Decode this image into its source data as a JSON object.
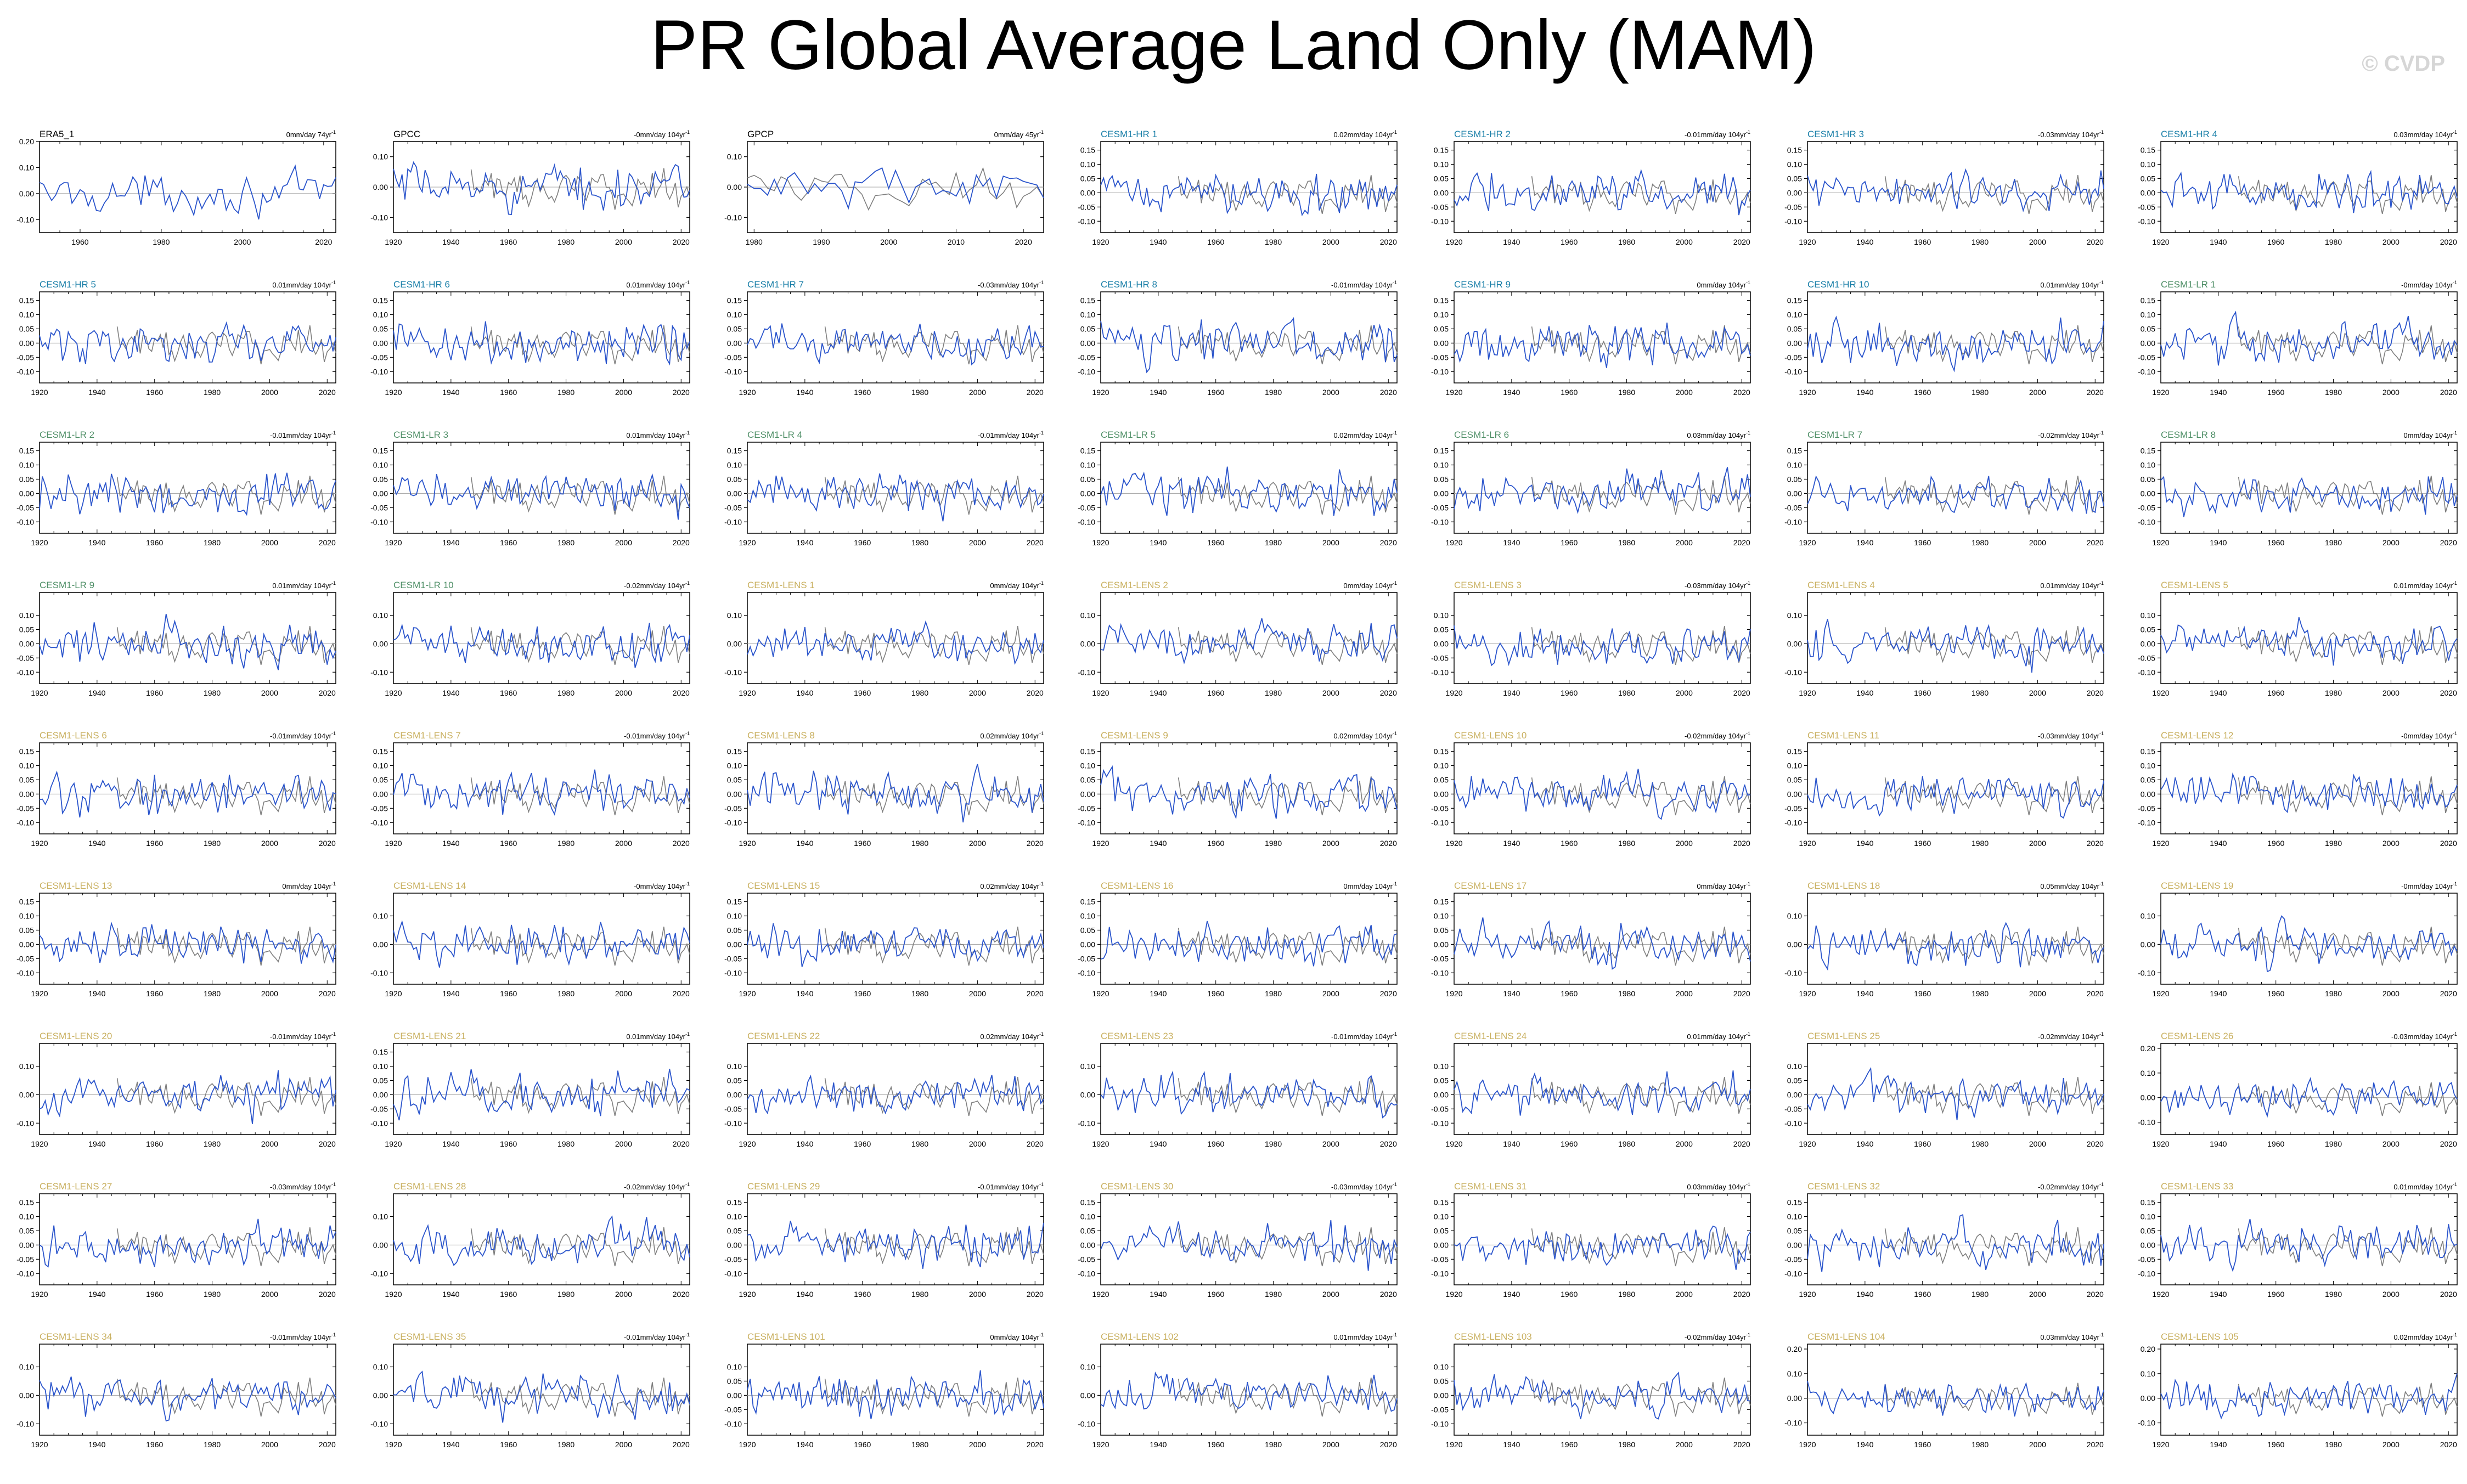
{
  "title": "PR Global Average Land Only (MAM)",
  "watermark": "© CVDP",
  "colors": {
    "model_line": "#2b55cc",
    "obs_line": "#7f7f7f",
    "zero_line": "#a0a0a0",
    "obs_title": "#000000",
    "hr_title": "#1a7fa8",
    "lr_title": "#4f8f67",
    "lens_title": "#c9b060"
  },
  "chart_data": [
    {
      "type": "line",
      "panel": "ERA5_1",
      "trend_label": "0mm/day 74yr",
      "group": "obs",
      "x_range": [
        1950,
        2023
      ],
      "ylim": [
        -0.15,
        0.2
      ],
      "yticks": [
        -0.1,
        0.0,
        0.1,
        0.2
      ],
      "xticks": [
        1960,
        1980,
        2000,
        2020
      ],
      "series": []
    },
    {
      "type": "line",
      "panel": "GPCC",
      "trend_label": "-0mm/day 104yr",
      "group": "obs",
      "x_range": [
        1920,
        2023
      ],
      "ylim": [
        -0.15,
        0.15
      ],
      "yticks": [
        -0.1,
        0.0,
        0.1
      ],
      "xticks": [
        1920,
        1940,
        1960,
        1980,
        2000,
        2020
      ],
      "series": []
    },
    {
      "type": "line",
      "panel": "GPCP",
      "trend_label": "0mm/day 45yr",
      "group": "obs",
      "x_range": [
        1979,
        2023
      ],
      "ylim": [
        -0.15,
        0.15
      ],
      "yticks": [
        -0.1,
        0.0,
        0.1
      ],
      "xticks": [
        1980,
        1990,
        2000,
        2010,
        2020
      ],
      "series": []
    },
    {
      "type": "line",
      "panel": "CESM1-HR 1",
      "trend_label": "0.02mm/day 104yr",
      "group": "hr",
      "yticks": [
        -0.1,
        -0.05,
        0.0,
        0.05,
        0.1,
        0.15
      ],
      "series": []
    },
    {
      "type": "line",
      "panel": "CESM1-HR 2",
      "trend_label": "-0.01mm/day 104yr",
      "group": "hr",
      "yticks": [
        -0.1,
        -0.05,
        0.0,
        0.05,
        0.1,
        0.15
      ],
      "series": []
    },
    {
      "type": "line",
      "panel": "CESM1-HR 3",
      "trend_label": "-0.03mm/day 104yr",
      "group": "hr",
      "yticks": [
        -0.1,
        -0.05,
        0.0,
        0.05,
        0.1,
        0.15
      ],
      "series": []
    },
    {
      "type": "line",
      "panel": "CESM1-HR 4",
      "trend_label": "0.03mm/day 104yr",
      "group": "hr",
      "yticks": [
        -0.1,
        -0.05,
        0.0,
        0.05,
        0.1,
        0.15
      ],
      "series": []
    },
    {
      "type": "line",
      "panel": "CESM1-HR 5",
      "trend_label": "0.01mm/day 104yr",
      "group": "hr",
      "yticks": [
        -0.1,
        -0.05,
        0.0,
        0.05,
        0.1,
        0.15
      ],
      "series": []
    },
    {
      "type": "line",
      "panel": "CESM1-HR 6",
      "trend_label": "0.01mm/day 104yr",
      "group": "hr",
      "yticks": [
        -0.1,
        -0.05,
        0.0,
        0.05,
        0.1,
        0.15
      ],
      "series": []
    },
    {
      "type": "line",
      "panel": "CESM1-HR 7",
      "trend_label": "-0.03mm/day 104yr",
      "group": "hr",
      "yticks": [
        -0.1,
        -0.05,
        0.0,
        0.05,
        0.1,
        0.15
      ],
      "series": []
    },
    {
      "type": "line",
      "panel": "CESM1-HR 8",
      "trend_label": "-0.01mm/day 104yr",
      "group": "hr",
      "yticks": [
        -0.1,
        -0.05,
        0.0,
        0.05,
        0.1,
        0.15
      ],
      "series": []
    },
    {
      "type": "line",
      "panel": "CESM1-HR 9",
      "trend_label": "0mm/day 104yr",
      "group": "hr",
      "yticks": [
        -0.1,
        -0.05,
        0.0,
        0.05,
        0.1,
        0.15
      ],
      "series": []
    },
    {
      "type": "line",
      "panel": "CESM1-HR 10",
      "trend_label": "0.01mm/day 104yr",
      "group": "hr",
      "yticks": [
        -0.1,
        -0.05,
        0.0,
        0.05,
        0.1,
        0.15
      ],
      "series": []
    },
    {
      "type": "line",
      "panel": "CESM1-LR 1",
      "trend_label": "-0mm/day 104yr",
      "group": "lr",
      "yticks": [
        -0.1,
        -0.05,
        0.0,
        0.05,
        0.1,
        0.15
      ],
      "series": []
    },
    {
      "type": "line",
      "panel": "CESM1-LR 2",
      "trend_label": "-0.01mm/day 104yr",
      "group": "lr",
      "yticks": [
        -0.1,
        -0.05,
        0.0,
        0.05,
        0.1,
        0.15
      ],
      "series": []
    },
    {
      "type": "line",
      "panel": "CESM1-LR 3",
      "trend_label": "0.01mm/day 104yr",
      "group": "lr",
      "yticks": [
        -0.1,
        -0.05,
        0.0,
        0.05,
        0.1,
        0.15
      ],
      "series": []
    },
    {
      "type": "line",
      "panel": "CESM1-LR 4",
      "trend_label": "-0.01mm/day 104yr",
      "group": "lr",
      "yticks": [
        -0.1,
        -0.05,
        0.0,
        0.05,
        0.1,
        0.15
      ],
      "series": []
    },
    {
      "type": "line",
      "panel": "CESM1-LR 5",
      "trend_label": "0.02mm/day 104yr",
      "group": "lr",
      "yticks": [
        -0.1,
        -0.05,
        0.0,
        0.05,
        0.1,
        0.15
      ],
      "series": []
    },
    {
      "type": "line",
      "panel": "CESM1-LR 6",
      "trend_label": "0.03mm/day 104yr",
      "group": "lr",
      "yticks": [
        -0.1,
        -0.05,
        0.0,
        0.05,
        0.1,
        0.15
      ],
      "series": []
    },
    {
      "type": "line",
      "panel": "CESM1-LR 7",
      "trend_label": "-0.02mm/day 104yr",
      "group": "lr",
      "yticks": [
        -0.1,
        -0.05,
        0.0,
        0.05,
        0.1,
        0.15
      ],
      "series": []
    },
    {
      "type": "line",
      "panel": "CESM1-LR 8",
      "trend_label": "0mm/day 104yr",
      "group": "lr",
      "yticks": [
        -0.1,
        -0.05,
        0.0,
        0.05,
        0.1,
        0.15
      ],
      "series": []
    },
    {
      "type": "line",
      "panel": "CESM1-LR 9",
      "trend_label": "0.01mm/day 104yr",
      "group": "lr",
      "yticks": [
        -0.1,
        -0.05,
        0.0,
        0.05,
        0.1
      ],
      "series": []
    },
    {
      "type": "line",
      "panel": "CESM1-LR 10",
      "trend_label": "-0.02mm/day 104yr",
      "group": "lr",
      "yticks": [
        -0.1,
        0.0,
        0.1
      ],
      "series": []
    },
    {
      "type": "line",
      "panel": "CESM1-LENS 1",
      "trend_label": "0mm/day 104yr",
      "group": "lens",
      "yticks": [
        -0.1,
        0.0,
        0.1
      ],
      "series": []
    },
    {
      "type": "line",
      "panel": "CESM1-LENS 2",
      "trend_label": "0mm/day 104yr",
      "group": "lens",
      "yticks": [
        -0.1,
        0.0,
        0.1
      ],
      "series": []
    },
    {
      "type": "line",
      "panel": "CESM1-LENS 3",
      "trend_label": "-0.03mm/day 104yr",
      "group": "lens",
      "yticks": [
        -0.1,
        -0.05,
        0.0,
        0.05,
        0.1
      ],
      "series": []
    },
    {
      "type": "line",
      "panel": "CESM1-LENS 4",
      "trend_label": "0.01mm/day 104yr",
      "group": "lens",
      "yticks": [
        -0.1,
        0.0,
        0.1
      ],
      "series": []
    },
    {
      "type": "line",
      "panel": "CESM1-LENS 5",
      "trend_label": "0.01mm/day 104yr",
      "group": "lens",
      "yticks": [
        -0.1,
        -0.05,
        0.0,
        0.05,
        0.1
      ],
      "series": []
    },
    {
      "type": "line",
      "panel": "CESM1-LENS 6",
      "trend_label": "-0.01mm/day 104yr",
      "group": "lens",
      "yticks": [
        -0.1,
        -0.05,
        0.0,
        0.05,
        0.1,
        0.15
      ],
      "series": []
    },
    {
      "type": "line",
      "panel": "CESM1-LENS 7",
      "trend_label": "-0.01mm/day 104yr",
      "group": "lens",
      "yticks": [
        -0.1,
        -0.05,
        0.0,
        0.05,
        0.1,
        0.15
      ],
      "series": []
    },
    {
      "type": "line",
      "panel": "CESM1-LENS 8",
      "trend_label": "0.02mm/day 104yr",
      "group": "lens",
      "yticks": [
        -0.1,
        -0.05,
        0.0,
        0.05,
        0.1,
        0.15
      ],
      "series": []
    },
    {
      "type": "line",
      "panel": "CESM1-LENS 9",
      "trend_label": "0.02mm/day 104yr",
      "group": "lens",
      "yticks": [
        -0.1,
        -0.05,
        0.0,
        0.05,
        0.1,
        0.15
      ],
      "series": []
    },
    {
      "type": "line",
      "panel": "CESM1-LENS 10",
      "trend_label": "-0.02mm/day 104yr",
      "group": "lens",
      "yticks": [
        -0.1,
        -0.05,
        0.0,
        0.05,
        0.1,
        0.15
      ],
      "series": []
    },
    {
      "type": "line",
      "panel": "CESM1-LENS 11",
      "trend_label": "-0.03mm/day 104yr",
      "group": "lens",
      "yticks": [
        -0.1,
        -0.05,
        0.0,
        0.05,
        0.1,
        0.15
      ],
      "series": []
    },
    {
      "type": "line",
      "panel": "CESM1-LENS 12",
      "trend_label": "-0mm/day 104yr",
      "group": "lens",
      "yticks": [
        -0.1,
        -0.05,
        0.0,
        0.05,
        0.1,
        0.15
      ],
      "series": []
    },
    {
      "type": "line",
      "panel": "CESM1-LENS 13",
      "trend_label": "0mm/day 104yr",
      "group": "lens",
      "yticks": [
        -0.1,
        -0.05,
        0.0,
        0.05,
        0.1,
        0.15
      ],
      "series": []
    },
    {
      "type": "line",
      "panel": "CESM1-LENS 14",
      "trend_label": "-0mm/day 104yr",
      "group": "lens",
      "yticks": [
        -0.1,
        0.0,
        0.1
      ],
      "series": []
    },
    {
      "type": "line",
      "panel": "CESM1-LENS 15",
      "trend_label": "0.02mm/day 104yr",
      "group": "lens",
      "yticks": [
        -0.1,
        -0.05,
        0.0,
        0.05,
        0.1,
        0.15
      ],
      "series": []
    },
    {
      "type": "line",
      "panel": "CESM1-LENS 16",
      "trend_label": "0mm/day 104yr",
      "group": "lens",
      "yticks": [
        -0.1,
        -0.05,
        0.0,
        0.05,
        0.1,
        0.15
      ],
      "series": []
    },
    {
      "type": "line",
      "panel": "CESM1-LENS 17",
      "trend_label": "0mm/day 104yr",
      "group": "lens",
      "yticks": [
        -0.1,
        -0.05,
        0.0,
        0.05,
        0.1,
        0.15
      ],
      "series": []
    },
    {
      "type": "line",
      "panel": "CESM1-LENS 18",
      "trend_label": "0.05mm/day 104yr",
      "group": "lens",
      "yticks": [
        -0.1,
        0.0,
        0.1
      ],
      "series": []
    },
    {
      "type": "line",
      "panel": "CESM1-LENS 19",
      "trend_label": "-0mm/day 104yr",
      "group": "lens",
      "yticks": [
        -0.1,
        0.0,
        0.1
      ],
      "series": []
    },
    {
      "type": "line",
      "panel": "CESM1-LENS 20",
      "trend_label": "-0.01mm/day 104yr",
      "group": "lens",
      "yticks": [
        -0.1,
        0.0,
        0.1
      ],
      "series": []
    },
    {
      "type": "line",
      "panel": "CESM1-LENS 21",
      "trend_label": "0.01mm/day 104yr",
      "group": "lens",
      "yticks": [
        -0.1,
        -0.05,
        0.0,
        0.05,
        0.1,
        0.15
      ],
      "series": []
    },
    {
      "type": "line",
      "panel": "CESM1-LENS 22",
      "trend_label": "0.02mm/day 104yr",
      "group": "lens",
      "yticks": [
        -0.1,
        -0.05,
        0.0,
        0.05,
        0.1
      ],
      "series": []
    },
    {
      "type": "line",
      "panel": "CESM1-LENS 23",
      "trend_label": "-0.01mm/day 104yr",
      "group": "lens",
      "yticks": [
        -0.1,
        0.0,
        0.1
      ],
      "series": []
    },
    {
      "type": "line",
      "panel": "CESM1-LENS 24",
      "trend_label": "0.01mm/day 104yr",
      "group": "lens",
      "yticks": [
        -0.1,
        -0.05,
        0.0,
        0.05,
        0.1
      ],
      "series": []
    },
    {
      "type": "line",
      "panel": "CESM1-LENS 25",
      "trend_label": "-0.02mm/day 104yr",
      "group": "lens",
      "yticks": [
        -0.1,
        -0.05,
        0.0,
        0.05,
        0.1
      ],
      "series": []
    },
    {
      "type": "line",
      "panel": "CESM1-LENS 26",
      "trend_label": "-0.03mm/day 104yr",
      "group": "lens",
      "yticks": [
        -0.1,
        0.0,
        0.1,
        0.2
      ],
      "series": []
    },
    {
      "type": "line",
      "panel": "CESM1-LENS 27",
      "trend_label": "-0.03mm/day 104yr",
      "group": "lens",
      "yticks": [
        -0.1,
        -0.05,
        0.0,
        0.05,
        0.1,
        0.15
      ],
      "series": []
    },
    {
      "type": "line",
      "panel": "CESM1-LENS 28",
      "trend_label": "-0.02mm/day 104yr",
      "group": "lens",
      "yticks": [
        -0.1,
        0.0,
        0.1
      ],
      "series": []
    },
    {
      "type": "line",
      "panel": "CESM1-LENS 29",
      "trend_label": "-0.01mm/day 104yr",
      "group": "lens",
      "yticks": [
        -0.1,
        -0.05,
        0.0,
        0.05,
        0.1,
        0.15
      ],
      "series": []
    },
    {
      "type": "line",
      "panel": "CESM1-LENS 30",
      "trend_label": "-0.03mm/day 104yr",
      "group": "lens",
      "yticks": [
        -0.1,
        -0.05,
        0.0,
        0.05,
        0.1,
        0.15
      ],
      "series": []
    },
    {
      "type": "line",
      "panel": "CESM1-LENS 31",
      "trend_label": "0.03mm/day 104yr",
      "group": "lens",
      "yticks": [
        -0.1,
        -0.05,
        0.0,
        0.05,
        0.1,
        0.15
      ],
      "series": []
    },
    {
      "type": "line",
      "panel": "CESM1-LENS 32",
      "trend_label": "-0.02mm/day 104yr",
      "group": "lens",
      "yticks": [
        -0.1,
        -0.05,
        0.0,
        0.05,
        0.1,
        0.15
      ],
      "series": []
    },
    {
      "type": "line",
      "panel": "CESM1-LENS 33",
      "trend_label": "0.01mm/day 104yr",
      "group": "lens",
      "yticks": [
        -0.1,
        -0.05,
        0.0,
        0.05,
        0.1,
        0.15
      ],
      "series": []
    },
    {
      "type": "line",
      "panel": "CESM1-LENS 34",
      "trend_label": "-0.01mm/day 104yr",
      "group": "lens",
      "yticks": [
        -0.1,
        0.0,
        0.1
      ],
      "series": []
    },
    {
      "type": "line",
      "panel": "CESM1-LENS 35",
      "trend_label": "-0.01mm/day 104yr",
      "group": "lens",
      "yticks": [
        -0.1,
        0.0,
        0.1
      ],
      "series": []
    },
    {
      "type": "line",
      "panel": "CESM1-LENS 101",
      "trend_label": "0mm/day 104yr",
      "group": "lens",
      "yticks": [
        -0.1,
        -0.05,
        0.0,
        0.05,
        0.1
      ],
      "series": []
    },
    {
      "type": "line",
      "panel": "CESM1-LENS 102",
      "trend_label": "0.01mm/day 104yr",
      "group": "lens",
      "yticks": [
        -0.1,
        0.0,
        0.1
      ],
      "series": []
    },
    {
      "type": "line",
      "panel": "CESM1-LENS 103",
      "trend_label": "-0.02mm/day 104yr",
      "group": "lens",
      "yticks": [
        -0.1,
        -0.05,
        0.0,
        0.05,
        0.1
      ],
      "series": []
    },
    {
      "type": "line",
      "panel": "CESM1-LENS 104",
      "trend_label": "0.03mm/day 104yr",
      "group": "lens",
      "yticks": [
        -0.1,
        0.0,
        0.1,
        0.2
      ],
      "series": []
    },
    {
      "type": "line",
      "panel": "CESM1-LENS 105",
      "trend_label": "0.02mm/day 104yr",
      "group": "lens",
      "yticks": [
        -0.1,
        0.0,
        0.1,
        0.2
      ],
      "series": []
    }
  ]
}
